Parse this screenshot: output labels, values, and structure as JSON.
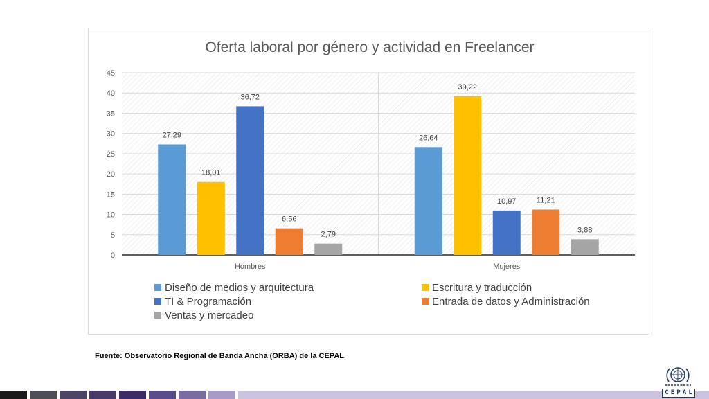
{
  "chart_data": {
    "type": "bar",
    "title": "Oferta laboral por género y actividad en Freelancer",
    "categories": [
      "Hombres",
      "Mujeres"
    ],
    "ylim": [
      0,
      45
    ],
    "yticks": [
      "0",
      "5",
      "10",
      "15",
      "20",
      "25",
      "30",
      "35",
      "40",
      "45"
    ],
    "grid": true,
    "legend_position": "bottom",
    "series": [
      {
        "name": "Diseño de medios y arquitectura",
        "color": "#5b9bd5",
        "values": [
          27.29,
          26.64
        ],
        "labels": [
          "27,29",
          "26,64"
        ]
      },
      {
        "name": "Escritura y traducción",
        "color": "#ffc000",
        "values": [
          18.01,
          39.22
        ],
        "labels": [
          "18,01",
          "39,22"
        ]
      },
      {
        "name": "TI & Programación",
        "color": "#4472c4",
        "values": [
          36.72,
          10.97
        ],
        "labels": [
          "36,72",
          "10,97"
        ]
      },
      {
        "name": "Entrada de datos y Administración",
        "color": "#ed7d31",
        "values": [
          6.56,
          11.21
        ],
        "labels": [
          "6,56",
          "11,21"
        ]
      },
      {
        "name": "Ventas y mercadeo",
        "color": "#a5a5a5",
        "values": [
          2.79,
          3.88
        ],
        "labels": [
          "2,79",
          "3,88"
        ]
      }
    ]
  },
  "source_note": "Fuente: Observatorio Regional de Banda Ancha (ORBA) de la CEPAL",
  "logo": {
    "letters": [
      "C",
      "E",
      "P",
      "A",
      "L"
    ]
  },
  "bottom_bar_colors": [
    "#1a1a1a",
    "#4d4d58",
    "#4e4466",
    "#4a3a6a",
    "#3d2b66",
    "#5a4b8a",
    "#7a6ba0",
    "#a99bc8",
    "#ccc4de"
  ]
}
